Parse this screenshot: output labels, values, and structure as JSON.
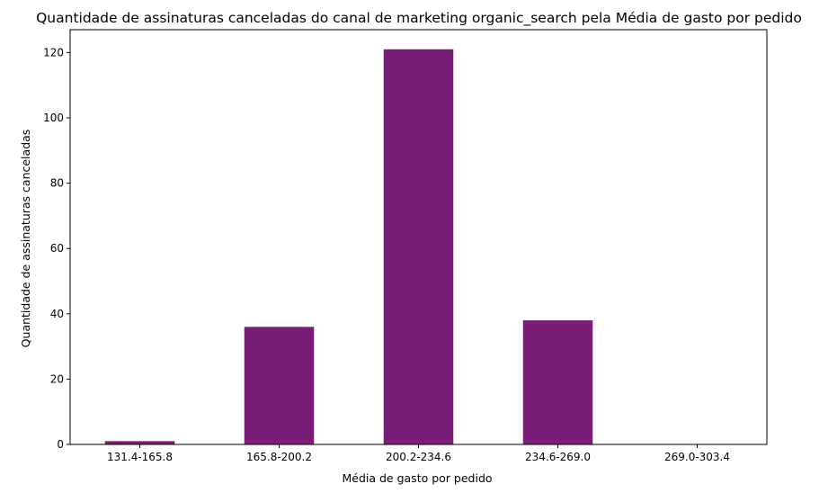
{
  "chart_data": {
    "type": "bar",
    "title": "Quantidade de assinaturas canceladas do canal de marketing organic_search pela Média de gasto por pedido",
    "xlabel": "Média de gasto por pedido",
    "ylabel": "Quantidade de assinaturas canceladas",
    "categories": [
      "131.4-165.8",
      "165.8-200.2",
      "200.2-234.6",
      "234.6-269.0",
      "269.0-303.4"
    ],
    "values": [
      1,
      36,
      121,
      38,
      0
    ],
    "ylim": [
      0,
      127
    ],
    "yticks": [
      0,
      20,
      40,
      60,
      80,
      100,
      120
    ],
    "bar_color": "#781e77",
    "grid": false,
    "legend": "none"
  }
}
